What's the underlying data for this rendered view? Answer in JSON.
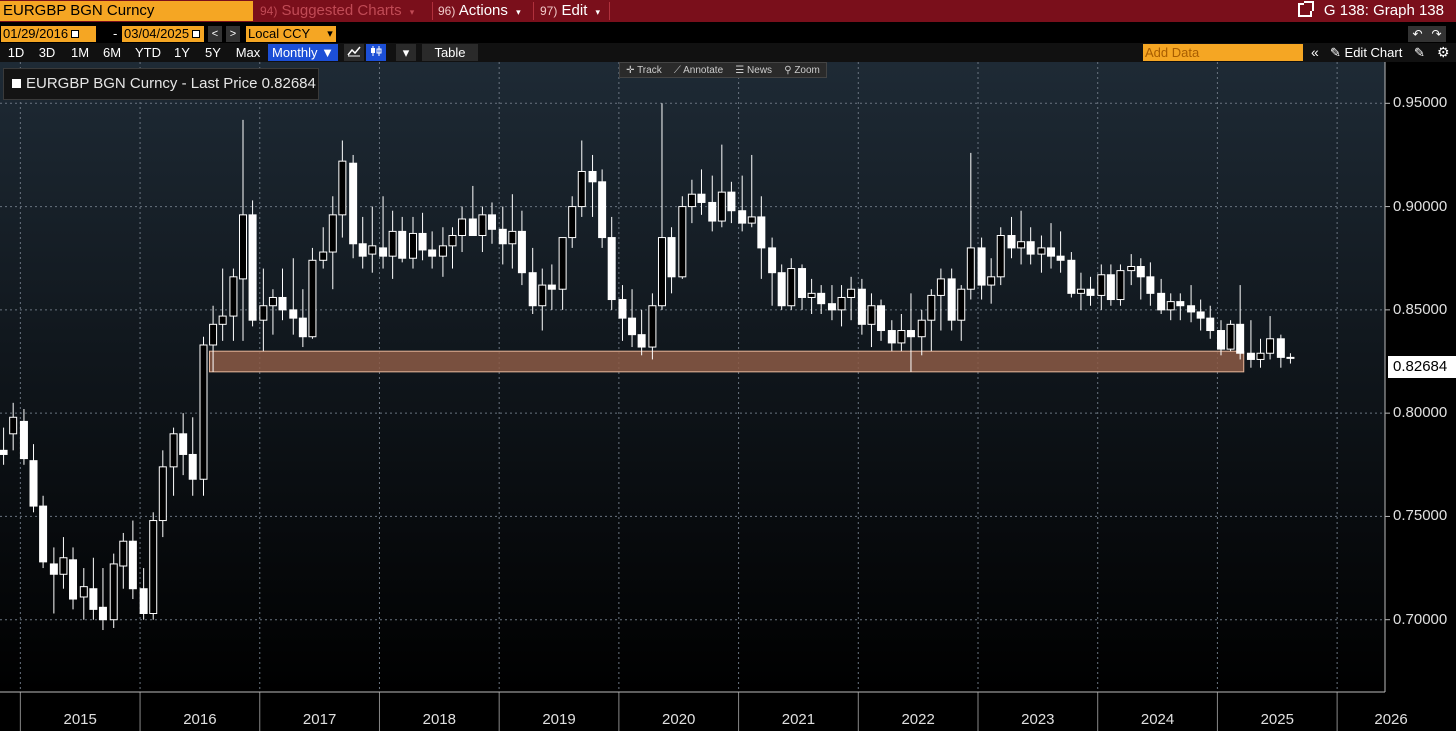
{
  "menubar": {
    "ticker": "EURGBP BGN Curncy",
    "suggested": {
      "num": "94)",
      "label": "Suggested Charts"
    },
    "actions": {
      "num": "96)",
      "label": "Actions"
    },
    "edit": {
      "num": "97)",
      "label": "Edit"
    },
    "graph_title": "G 138: Graph 138"
  },
  "daterow": {
    "start_date": "01/29/2016",
    "end_date": "03/04/2025",
    "dash": "-",
    "prev": "<",
    "next": ">",
    "currency": "Local CCY",
    "currency_caret": "▾",
    "undo": "↶",
    "redo": "↷"
  },
  "toolbar": {
    "periods": [
      "1D",
      "3D",
      "1M",
      "6M",
      "YTD",
      "1Y",
      "5Y",
      "Max"
    ],
    "frequency": "Monthly ▼",
    "table_label": "Table",
    "add_data_placeholder": "Add Data",
    "edit_chart_label": "Edit Chart",
    "collapse": "«",
    "gear": "⚙",
    "pencil": "✎",
    "caret": "▾"
  },
  "chart_tools": {
    "track": "Track",
    "annotate": "Annotate",
    "news": "News",
    "zoom": "Zoom"
  },
  "legend": {
    "label": "EURGBP BGN Curncy - Last Price 0.82684"
  },
  "colors": {
    "background": "#000000",
    "candle": "#ffffff",
    "support_zone": "#8c5a45",
    "menubar": "#7a0f1b",
    "accent": "#f5a623"
  },
  "chart_data": {
    "type": "candlestick",
    "title": "EURGBP BGN Curncy",
    "last_price": "0.82684",
    "x_ticks": [
      "2015",
      "2016",
      "2017",
      "2018",
      "2019",
      "2020",
      "2021",
      "2022",
      "2023",
      "2024",
      "2025",
      "2026"
    ],
    "y_ticks": [
      "0.95000",
      "0.90000",
      "0.85000",
      "0.80000",
      "0.75000",
      "0.70000"
    ],
    "ylim": [
      0.665,
      0.97
    ],
    "xlim": [
      2014.83,
      2026.4
    ],
    "grid": true,
    "support_zone": {
      "low": 0.82,
      "high": 0.83,
      "x_start": 2016.58,
      "x_end": 2025.22
    },
    "candles": [
      {
        "t": 2014.86,
        "o": 0.782,
        "h": 0.793,
        "l": 0.775,
        "c": 0.78
      },
      {
        "t": 2014.94,
        "o": 0.79,
        "h": 0.805,
        "l": 0.782,
        "c": 0.798
      },
      {
        "t": 2015.03,
        "o": 0.796,
        "h": 0.802,
        "l": 0.775,
        "c": 0.778
      },
      {
        "t": 2015.11,
        "o": 0.777,
        "h": 0.785,
        "l": 0.752,
        "c": 0.755
      },
      {
        "t": 2015.19,
        "o": 0.755,
        "h": 0.76,
        "l": 0.725,
        "c": 0.728
      },
      {
        "t": 2015.28,
        "o": 0.727,
        "h": 0.735,
        "l": 0.703,
        "c": 0.722
      },
      {
        "t": 2015.36,
        "o": 0.722,
        "h": 0.74,
        "l": 0.715,
        "c": 0.73
      },
      {
        "t": 2015.44,
        "o": 0.729,
        "h": 0.735,
        "l": 0.705,
        "c": 0.71
      },
      {
        "t": 2015.53,
        "o": 0.711,
        "h": 0.725,
        "l": 0.7,
        "c": 0.716
      },
      {
        "t": 2015.61,
        "o": 0.715,
        "h": 0.73,
        "l": 0.7,
        "c": 0.705
      },
      {
        "t": 2015.69,
        "o": 0.706,
        "h": 0.725,
        "l": 0.695,
        "c": 0.7
      },
      {
        "t": 2015.78,
        "o": 0.7,
        "h": 0.732,
        "l": 0.696,
        "c": 0.727
      },
      {
        "t": 2015.86,
        "o": 0.726,
        "h": 0.742,
        "l": 0.715,
        "c": 0.738
      },
      {
        "t": 2015.94,
        "o": 0.738,
        "h": 0.748,
        "l": 0.71,
        "c": 0.715
      },
      {
        "t": 2016.03,
        "o": 0.715,
        "h": 0.725,
        "l": 0.7,
        "c": 0.703
      },
      {
        "t": 2016.11,
        "o": 0.703,
        "h": 0.752,
        "l": 0.7,
        "c": 0.748
      },
      {
        "t": 2016.19,
        "o": 0.748,
        "h": 0.782,
        "l": 0.74,
        "c": 0.774
      },
      {
        "t": 2016.28,
        "o": 0.774,
        "h": 0.793,
        "l": 0.76,
        "c": 0.79
      },
      {
        "t": 2016.36,
        "o": 0.79,
        "h": 0.8,
        "l": 0.77,
        "c": 0.78
      },
      {
        "t": 2016.44,
        "o": 0.78,
        "h": 0.798,
        "l": 0.76,
        "c": 0.768
      },
      {
        "t": 2016.53,
        "o": 0.768,
        "h": 0.837,
        "l": 0.76,
        "c": 0.833
      },
      {
        "t": 2016.61,
        "o": 0.833,
        "h": 0.852,
        "l": 0.82,
        "c": 0.843
      },
      {
        "t": 2016.69,
        "o": 0.843,
        "h": 0.87,
        "l": 0.835,
        "c": 0.847
      },
      {
        "t": 2016.78,
        "o": 0.847,
        "h": 0.87,
        "l": 0.835,
        "c": 0.866
      },
      {
        "t": 2016.86,
        "o": 0.865,
        "h": 0.942,
        "l": 0.835,
        "c": 0.896
      },
      {
        "t": 2016.94,
        "o": 0.896,
        "h": 0.903,
        "l": 0.842,
        "c": 0.845
      },
      {
        "t": 2017.03,
        "o": 0.845,
        "h": 0.87,
        "l": 0.83,
        "c": 0.852
      },
      {
        "t": 2017.11,
        "o": 0.852,
        "h": 0.86,
        "l": 0.838,
        "c": 0.856
      },
      {
        "t": 2017.19,
        "o": 0.856,
        "h": 0.87,
        "l": 0.845,
        "c": 0.85
      },
      {
        "t": 2017.28,
        "o": 0.85,
        "h": 0.875,
        "l": 0.838,
        "c": 0.846
      },
      {
        "t": 2017.36,
        "o": 0.846,
        "h": 0.86,
        "l": 0.832,
        "c": 0.837
      },
      {
        "t": 2017.44,
        "o": 0.837,
        "h": 0.88,
        "l": 0.836,
        "c": 0.874
      },
      {
        "t": 2017.53,
        "o": 0.874,
        "h": 0.89,
        "l": 0.87,
        "c": 0.878
      },
      {
        "t": 2017.61,
        "o": 0.878,
        "h": 0.905,
        "l": 0.86,
        "c": 0.896
      },
      {
        "t": 2017.69,
        "o": 0.896,
        "h": 0.932,
        "l": 0.885,
        "c": 0.922
      },
      {
        "t": 2017.78,
        "o": 0.921,
        "h": 0.925,
        "l": 0.875,
        "c": 0.882
      },
      {
        "t": 2017.86,
        "o": 0.882,
        "h": 0.895,
        "l": 0.87,
        "c": 0.876
      },
      {
        "t": 2017.94,
        "o": 0.877,
        "h": 0.9,
        "l": 0.868,
        "c": 0.881
      },
      {
        "t": 2018.03,
        "o": 0.88,
        "h": 0.905,
        "l": 0.87,
        "c": 0.876
      },
      {
        "t": 2018.11,
        "o": 0.876,
        "h": 0.898,
        "l": 0.865,
        "c": 0.888
      },
      {
        "t": 2018.19,
        "o": 0.888,
        "h": 0.895,
        "l": 0.873,
        "c": 0.875
      },
      {
        "t": 2018.28,
        "o": 0.875,
        "h": 0.895,
        "l": 0.87,
        "c": 0.887
      },
      {
        "t": 2018.36,
        "o": 0.887,
        "h": 0.897,
        "l": 0.874,
        "c": 0.879
      },
      {
        "t": 2018.44,
        "o": 0.879,
        "h": 0.888,
        "l": 0.87,
        "c": 0.876
      },
      {
        "t": 2018.53,
        "o": 0.876,
        "h": 0.89,
        "l": 0.866,
        "c": 0.881
      },
      {
        "t": 2018.61,
        "o": 0.881,
        "h": 0.89,
        "l": 0.87,
        "c": 0.886
      },
      {
        "t": 2018.69,
        "o": 0.886,
        "h": 0.9,
        "l": 0.878,
        "c": 0.894
      },
      {
        "t": 2018.78,
        "o": 0.894,
        "h": 0.91,
        "l": 0.888,
        "c": 0.886
      },
      {
        "t": 2018.86,
        "o": 0.886,
        "h": 0.9,
        "l": 0.878,
        "c": 0.896
      },
      {
        "t": 2018.94,
        "o": 0.896,
        "h": 0.902,
        "l": 0.882,
        "c": 0.889
      },
      {
        "t": 2019.03,
        "o": 0.889,
        "h": 0.9,
        "l": 0.872,
        "c": 0.882
      },
      {
        "t": 2019.11,
        "o": 0.882,
        "h": 0.906,
        "l": 0.87,
        "c": 0.888
      },
      {
        "t": 2019.19,
        "o": 0.888,
        "h": 0.898,
        "l": 0.862,
        "c": 0.868
      },
      {
        "t": 2019.28,
        "o": 0.868,
        "h": 0.88,
        "l": 0.848,
        "c": 0.852
      },
      {
        "t": 2019.36,
        "o": 0.852,
        "h": 0.87,
        "l": 0.84,
        "c": 0.862
      },
      {
        "t": 2019.44,
        "o": 0.862,
        "h": 0.872,
        "l": 0.85,
        "c": 0.86
      },
      {
        "t": 2019.53,
        "o": 0.86,
        "h": 0.885,
        "l": 0.85,
        "c": 0.885
      },
      {
        "t": 2019.61,
        "o": 0.885,
        "h": 0.905,
        "l": 0.88,
        "c": 0.9
      },
      {
        "t": 2019.69,
        "o": 0.9,
        "h": 0.932,
        "l": 0.895,
        "c": 0.917
      },
      {
        "t": 2019.78,
        "o": 0.917,
        "h": 0.925,
        "l": 0.895,
        "c": 0.912
      },
      {
        "t": 2019.86,
        "o": 0.912,
        "h": 0.918,
        "l": 0.88,
        "c": 0.885
      },
      {
        "t": 2019.94,
        "o": 0.885,
        "h": 0.895,
        "l": 0.85,
        "c": 0.855
      },
      {
        "t": 2020.03,
        "o": 0.855,
        "h": 0.862,
        "l": 0.835,
        "c": 0.846
      },
      {
        "t": 2020.11,
        "o": 0.846,
        "h": 0.86,
        "l": 0.832,
        "c": 0.838
      },
      {
        "t": 2020.19,
        "o": 0.838,
        "h": 0.85,
        "l": 0.828,
        "c": 0.832
      },
      {
        "t": 2020.28,
        "o": 0.832,
        "h": 0.858,
        "l": 0.826,
        "c": 0.852
      },
      {
        "t": 2020.36,
        "o": 0.852,
        "h": 0.95,
        "l": 0.85,
        "c": 0.885
      },
      {
        "t": 2020.44,
        "o": 0.885,
        "h": 0.89,
        "l": 0.858,
        "c": 0.866
      },
      {
        "t": 2020.53,
        "o": 0.866,
        "h": 0.905,
        "l": 0.865,
        "c": 0.9
      },
      {
        "t": 2020.61,
        "o": 0.9,
        "h": 0.913,
        "l": 0.892,
        "c": 0.906
      },
      {
        "t": 2020.69,
        "o": 0.906,
        "h": 0.918,
        "l": 0.896,
        "c": 0.902
      },
      {
        "t": 2020.78,
        "o": 0.902,
        "h": 0.915,
        "l": 0.888,
        "c": 0.893
      },
      {
        "t": 2020.86,
        "o": 0.893,
        "h": 0.93,
        "l": 0.89,
        "c": 0.907
      },
      {
        "t": 2020.94,
        "o": 0.907,
        "h": 0.912,
        "l": 0.892,
        "c": 0.898
      },
      {
        "t": 2021.03,
        "o": 0.898,
        "h": 0.915,
        "l": 0.888,
        "c": 0.892
      },
      {
        "t": 2021.11,
        "o": 0.892,
        "h": 0.925,
        "l": 0.89,
        "c": 0.895
      },
      {
        "t": 2021.19,
        "o": 0.895,
        "h": 0.905,
        "l": 0.865,
        "c": 0.88
      },
      {
        "t": 2021.28,
        "o": 0.88,
        "h": 0.885,
        "l": 0.852,
        "c": 0.868
      },
      {
        "t": 2021.36,
        "o": 0.868,
        "h": 0.872,
        "l": 0.85,
        "c": 0.852
      },
      {
        "t": 2021.44,
        "o": 0.852,
        "h": 0.875,
        "l": 0.85,
        "c": 0.87
      },
      {
        "t": 2021.53,
        "o": 0.87,
        "h": 0.872,
        "l": 0.85,
        "c": 0.856
      },
      {
        "t": 2021.61,
        "o": 0.856,
        "h": 0.865,
        "l": 0.848,
        "c": 0.858
      },
      {
        "t": 2021.69,
        "o": 0.858,
        "h": 0.862,
        "l": 0.848,
        "c": 0.853
      },
      {
        "t": 2021.78,
        "o": 0.853,
        "h": 0.862,
        "l": 0.845,
        "c": 0.85
      },
      {
        "t": 2021.86,
        "o": 0.85,
        "h": 0.862,
        "l": 0.842,
        "c": 0.856
      },
      {
        "t": 2021.94,
        "o": 0.856,
        "h": 0.866,
        "l": 0.845,
        "c": 0.86
      },
      {
        "t": 2022.03,
        "o": 0.86,
        "h": 0.865,
        "l": 0.838,
        "c": 0.843
      },
      {
        "t": 2022.11,
        "o": 0.843,
        "h": 0.858,
        "l": 0.832,
        "c": 0.852
      },
      {
        "t": 2022.19,
        "o": 0.852,
        "h": 0.855,
        "l": 0.835,
        "c": 0.84
      },
      {
        "t": 2022.28,
        "o": 0.84,
        "h": 0.845,
        "l": 0.83,
        "c": 0.834
      },
      {
        "t": 2022.36,
        "o": 0.834,
        "h": 0.848,
        "l": 0.83,
        "c": 0.84
      },
      {
        "t": 2022.44,
        "o": 0.84,
        "h": 0.858,
        "l": 0.82,
        "c": 0.837
      },
      {
        "t": 2022.53,
        "o": 0.837,
        "h": 0.85,
        "l": 0.828,
        "c": 0.845
      },
      {
        "t": 2022.61,
        "o": 0.845,
        "h": 0.86,
        "l": 0.83,
        "c": 0.857
      },
      {
        "t": 2022.69,
        "o": 0.857,
        "h": 0.87,
        "l": 0.84,
        "c": 0.865
      },
      {
        "t": 2022.78,
        "o": 0.865,
        "h": 0.87,
        "l": 0.84,
        "c": 0.845
      },
      {
        "t": 2022.86,
        "o": 0.845,
        "h": 0.862,
        "l": 0.835,
        "c": 0.86
      },
      {
        "t": 2022.94,
        "o": 0.86,
        "h": 0.926,
        "l": 0.855,
        "c": 0.88
      },
      {
        "t": 2023.03,
        "o": 0.88,
        "h": 0.885,
        "l": 0.855,
        "c": 0.862
      },
      {
        "t": 2023.11,
        "o": 0.862,
        "h": 0.875,
        "l": 0.853,
        "c": 0.866
      },
      {
        "t": 2023.19,
        "o": 0.866,
        "h": 0.89,
        "l": 0.862,
        "c": 0.886
      },
      {
        "t": 2023.28,
        "o": 0.886,
        "h": 0.895,
        "l": 0.875,
        "c": 0.88
      },
      {
        "t": 2023.36,
        "o": 0.88,
        "h": 0.898,
        "l": 0.872,
        "c": 0.883
      },
      {
        "t": 2023.44,
        "o": 0.883,
        "h": 0.89,
        "l": 0.872,
        "c": 0.877
      },
      {
        "t": 2023.53,
        "o": 0.877,
        "h": 0.886,
        "l": 0.868,
        "c": 0.88
      },
      {
        "t": 2023.61,
        "o": 0.88,
        "h": 0.892,
        "l": 0.87,
        "c": 0.876
      },
      {
        "t": 2023.69,
        "o": 0.876,
        "h": 0.888,
        "l": 0.868,
        "c": 0.874
      },
      {
        "t": 2023.78,
        "o": 0.874,
        "h": 0.878,
        "l": 0.856,
        "c": 0.858
      },
      {
        "t": 2023.86,
        "o": 0.858,
        "h": 0.868,
        "l": 0.85,
        "c": 0.86
      },
      {
        "t": 2023.94,
        "o": 0.86,
        "h": 0.866,
        "l": 0.852,
        "c": 0.857
      },
      {
        "t": 2024.03,
        "o": 0.857,
        "h": 0.872,
        "l": 0.85,
        "c": 0.867
      },
      {
        "t": 2024.11,
        "o": 0.867,
        "h": 0.872,
        "l": 0.852,
        "c": 0.855
      },
      {
        "t": 2024.19,
        "o": 0.855,
        "h": 0.872,
        "l": 0.852,
        "c": 0.869
      },
      {
        "t": 2024.28,
        "o": 0.869,
        "h": 0.877,
        "l": 0.862,
        "c": 0.871
      },
      {
        "t": 2024.36,
        "o": 0.871,
        "h": 0.875,
        "l": 0.855,
        "c": 0.866
      },
      {
        "t": 2024.44,
        "o": 0.866,
        "h": 0.873,
        "l": 0.852,
        "c": 0.858
      },
      {
        "t": 2024.53,
        "o": 0.858,
        "h": 0.865,
        "l": 0.848,
        "c": 0.85
      },
      {
        "t": 2024.61,
        "o": 0.85,
        "h": 0.858,
        "l": 0.845,
        "c": 0.854
      },
      {
        "t": 2024.69,
        "o": 0.854,
        "h": 0.858,
        "l": 0.845,
        "c": 0.852
      },
      {
        "t": 2024.78,
        "o": 0.852,
        "h": 0.862,
        "l": 0.844,
        "c": 0.849
      },
      {
        "t": 2024.86,
        "o": 0.849,
        "h": 0.855,
        "l": 0.84,
        "c": 0.846
      },
      {
        "t": 2024.94,
        "o": 0.846,
        "h": 0.852,
        "l": 0.836,
        "c": 0.84
      },
      {
        "t": 2025.03,
        "o": 0.84,
        "h": 0.845,
        "l": 0.828,
        "c": 0.831
      },
      {
        "t": 2025.11,
        "o": 0.831,
        "h": 0.845,
        "l": 0.83,
        "c": 0.843
      },
      {
        "t": 2025.19,
        "o": 0.843,
        "h": 0.862,
        "l": 0.826,
        "c": 0.829
      },
      {
        "t": 2025.28,
        "o": 0.829,
        "h": 0.845,
        "l": 0.822,
        "c": 0.826
      },
      {
        "t": 2025.36,
        "o": 0.826,
        "h": 0.836,
        "l": 0.822,
        "c": 0.829
      },
      {
        "t": 2025.44,
        "o": 0.829,
        "h": 0.847,
        "l": 0.826,
        "c": 0.836
      },
      {
        "t": 2025.53,
        "o": 0.836,
        "h": 0.838,
        "l": 0.822,
        "c": 0.827
      },
      {
        "t": 2025.61,
        "o": 0.827,
        "h": 0.829,
        "l": 0.824,
        "c": 0.8268
      }
    ]
  }
}
